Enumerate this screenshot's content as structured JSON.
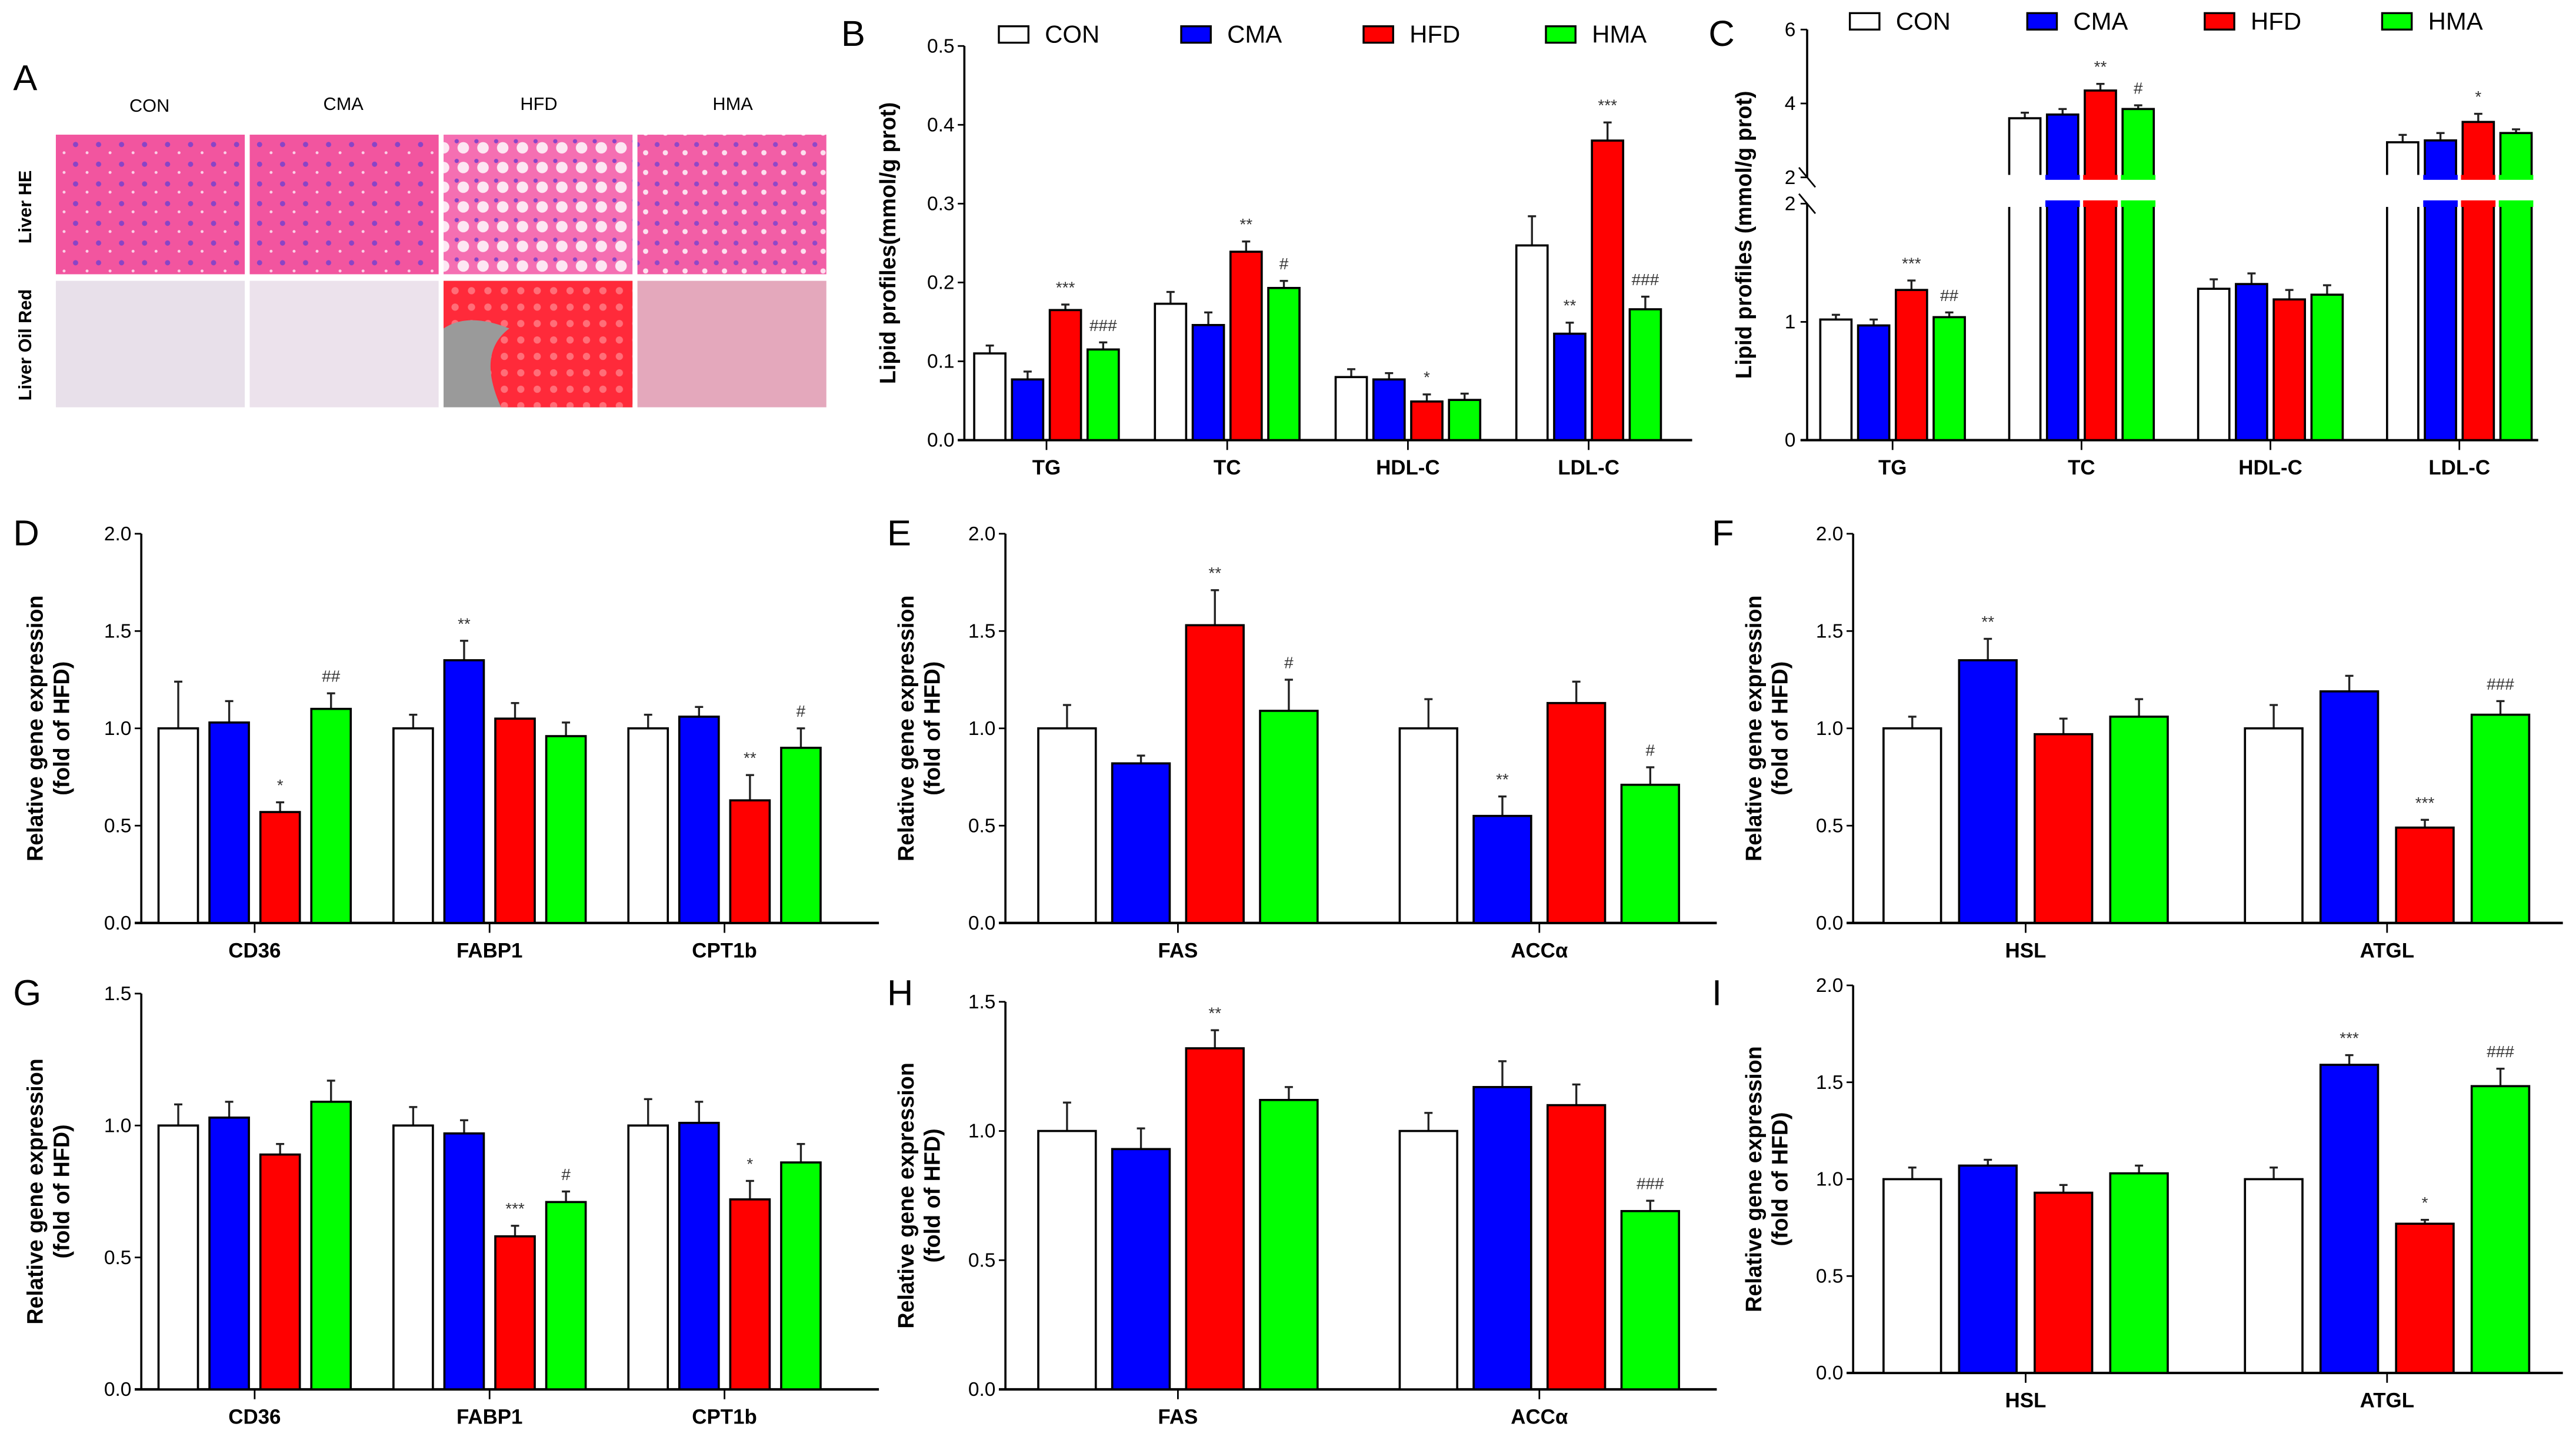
{
  "groups": [
    {
      "name": "CON",
      "color": "#ffffff"
    },
    {
      "name": "CMA",
      "color": "#0000ff"
    },
    {
      "name": "HFD",
      "color": "#ff0000"
    },
    {
      "name": "HMA",
      "color": "#00ff00"
    }
  ],
  "panel_a": {
    "letter": "A",
    "columns": [
      "CON",
      "CMA",
      "HFD",
      "HMA"
    ],
    "rows": [
      "Liver HE",
      "Liver Oil Red"
    ]
  },
  "chart_data": [
    {
      "id": "B",
      "type": "bar",
      "letter": "B",
      "ylabel": "Lipid profiles(mmol/g prot)",
      "ylabel2": "",
      "ylim": [
        0,
        0.5
      ],
      "yticks": [
        "0.0",
        "0.1",
        "0.2",
        "0.3",
        "0.4",
        "0.5"
      ],
      "legend": "top",
      "categories": [
        "TG",
        "TC",
        "HDL-C",
        "LDL-C"
      ],
      "series": [
        {
          "name": "CON",
          "values": [
            0.11,
            0.173,
            0.08,
            0.247
          ],
          "errors": [
            0.01,
            0.015,
            0.01,
            0.037
          ]
        },
        {
          "name": "CMA",
          "values": [
            0.077,
            0.146,
            0.077,
            0.135
          ],
          "errors": [
            0.01,
            0.016,
            0.008,
            0.014
          ]
        },
        {
          "name": "HFD",
          "values": [
            0.165,
            0.239,
            0.049,
            0.38
          ],
          "errors": [
            0.007,
            0.013,
            0.009,
            0.023
          ]
        },
        {
          "name": "HMA",
          "values": [
            0.115,
            0.193,
            0.051,
            0.166
          ],
          "errors": [
            0.009,
            0.009,
            0.008,
            0.016
          ]
        }
      ],
      "annotations": [
        [
          "",
          "",
          "***",
          "###"
        ],
        [
          "",
          "",
          "**",
          "#"
        ],
        [
          "",
          "",
          "*",
          ""
        ],
        [
          "",
          "**",
          "***",
          "###"
        ]
      ]
    },
    {
      "id": "C",
      "type": "bar",
      "letter": "C",
      "ylabel": "Lipid profiles (mmol/g prot)",
      "ylabel2": "",
      "ylim": [
        0,
        6
      ],
      "axis_break": [
        2,
        2
      ],
      "yticks": [
        "0",
        "1",
        "2",
        "2",
        "4",
        "6"
      ],
      "legend": "top",
      "categories": [
        "TG",
        "TC",
        "HDL-C",
        "LDL-C"
      ],
      "series": [
        {
          "name": "CON",
          "values": [
            1.02,
            3.6,
            1.28,
            2.95
          ],
          "errors": [
            0.04,
            0.15,
            0.08,
            0.2
          ]
        },
        {
          "name": "CMA",
          "values": [
            0.97,
            3.7,
            1.32,
            3.0
          ],
          "errors": [
            0.05,
            0.15,
            0.09,
            0.2
          ]
        },
        {
          "name": "HFD",
          "values": [
            1.27,
            4.35,
            1.19,
            3.5
          ],
          "errors": [
            0.08,
            0.18,
            0.08,
            0.22
          ]
        },
        {
          "name": "HMA",
          "values": [
            1.04,
            3.85,
            1.23,
            3.2
          ],
          "errors": [
            0.04,
            0.1,
            0.08,
            0.1
          ]
        }
      ],
      "annotations": [
        [
          "",
          "",
          "***",
          "##"
        ],
        [
          "",
          "",
          "**",
          "#"
        ],
        [
          "",
          "",
          "",
          ""
        ],
        [
          "",
          "",
          "*",
          ""
        ]
      ]
    },
    {
      "id": "D",
      "type": "bar",
      "letter": "D",
      "ylabel": "Relative gene expression",
      "ylabel2": "(fold of HFD)",
      "ylim": [
        0,
        2
      ],
      "yticks": [
        "0.0",
        "0.5",
        "1.0",
        "1.5",
        "2.0"
      ],
      "categories": [
        "CD36",
        "FABP1",
        "CPT1b"
      ],
      "series": [
        {
          "name": "CON",
          "values": [
            1.0,
            1.0,
            1.0
          ],
          "errors": [
            0.24,
            0.07,
            0.07
          ]
        },
        {
          "name": "CMA",
          "values": [
            1.03,
            1.35,
            1.06
          ],
          "errors": [
            0.11,
            0.1,
            0.05
          ]
        },
        {
          "name": "HFD",
          "values": [
            0.57,
            1.05,
            0.63
          ],
          "errors": [
            0.05,
            0.08,
            0.13
          ]
        },
        {
          "name": "HMA",
          "values": [
            1.1,
            0.96,
            0.9
          ],
          "errors": [
            0.08,
            0.07,
            0.1
          ]
        }
      ],
      "annotations": [
        [
          "",
          "",
          "*",
          "##"
        ],
        [
          "",
          "**",
          "",
          ""
        ],
        [
          "",
          "",
          "**",
          "#"
        ]
      ]
    },
    {
      "id": "E",
      "type": "bar",
      "letter": "E",
      "ylabel": "Relative gene expression",
      "ylabel2": "(fold of HFD)",
      "ylim": [
        0,
        2
      ],
      "yticks": [
        "0.0",
        "0.5",
        "1.0",
        "1.5",
        "2.0"
      ],
      "categories": [
        "FAS",
        "ACCα"
      ],
      "series": [
        {
          "name": "CON",
          "values": [
            1.0,
            1.0
          ],
          "errors": [
            0.12,
            0.15
          ]
        },
        {
          "name": "CMA",
          "values": [
            0.82,
            0.55
          ],
          "errors": [
            0.04,
            0.1
          ]
        },
        {
          "name": "HFD",
          "values": [
            1.53,
            1.13
          ],
          "errors": [
            0.18,
            0.11
          ]
        },
        {
          "name": "HMA",
          "values": [
            1.09,
            0.71
          ],
          "errors": [
            0.16,
            0.09
          ]
        }
      ],
      "annotations": [
        [
          "",
          "",
          "**",
          "#"
        ],
        [
          "",
          "**",
          "",
          "#"
        ]
      ]
    },
    {
      "id": "F",
      "type": "bar",
      "letter": "F",
      "ylabel": "Relative gene expression",
      "ylabel2": "(fold of HFD)",
      "ylim": [
        0,
        2
      ],
      "yticks": [
        "0.0",
        "0.5",
        "1.0",
        "1.5",
        "2.0"
      ],
      "categories": [
        "HSL",
        "ATGL"
      ],
      "series": [
        {
          "name": "CON",
          "values": [
            1.0,
            1.0
          ],
          "errors": [
            0.06,
            0.12
          ]
        },
        {
          "name": "CMA",
          "values": [
            1.35,
            1.19
          ],
          "errors": [
            0.11,
            0.08
          ]
        },
        {
          "name": "HFD",
          "values": [
            0.97,
            0.49
          ],
          "errors": [
            0.08,
            0.04
          ]
        },
        {
          "name": "HMA",
          "values": [
            1.06,
            1.07
          ],
          "errors": [
            0.09,
            0.07
          ]
        }
      ],
      "annotations": [
        [
          "",
          "**",
          "",
          ""
        ],
        [
          "",
          "",
          "***",
          "###"
        ]
      ]
    },
    {
      "id": "G",
      "type": "bar",
      "letter": "G",
      "ylabel": "Relative gene expression",
      "ylabel2": "(fold of HFD)",
      "ylim": [
        0,
        1.5
      ],
      "yticks": [
        "0.0",
        "0.5",
        "1.0",
        "1.5"
      ],
      "categories": [
        "CD36",
        "FABP1",
        "CPT1b"
      ],
      "series": [
        {
          "name": "CON",
          "values": [
            1.0,
            1.0,
            1.0
          ],
          "errors": [
            0.08,
            0.07,
            0.1
          ]
        },
        {
          "name": "CMA",
          "values": [
            1.03,
            0.97,
            1.01
          ],
          "errors": [
            0.06,
            0.05,
            0.08
          ]
        },
        {
          "name": "HFD",
          "values": [
            0.89,
            0.58,
            0.72
          ],
          "errors": [
            0.04,
            0.04,
            0.07
          ]
        },
        {
          "name": "HMA",
          "values": [
            1.09,
            0.71,
            0.86
          ],
          "errors": [
            0.08,
            0.04,
            0.07
          ]
        }
      ],
      "annotations": [
        [
          "",
          "",
          "",
          ""
        ],
        [
          "",
          "",
          "***",
          "#"
        ],
        [
          "",
          "",
          "*",
          ""
        ]
      ]
    },
    {
      "id": "H",
      "type": "bar",
      "letter": "H",
      "ylabel": "Relative gene expression",
      "ylabel2": "(fold of HFD)",
      "ylim": [
        0,
        1.5
      ],
      "yticks": [
        "0.0",
        "0.5",
        "1.0",
        "1.5"
      ],
      "categories": [
        "FAS",
        "ACCα"
      ],
      "series": [
        {
          "name": "CON",
          "values": [
            1.0,
            1.0
          ],
          "errors": [
            0.11,
            0.07
          ]
        },
        {
          "name": "CMA",
          "values": [
            0.93,
            1.17
          ],
          "errors": [
            0.08,
            0.1
          ]
        },
        {
          "name": "HFD",
          "values": [
            1.32,
            1.1
          ],
          "errors": [
            0.07,
            0.08
          ]
        },
        {
          "name": "HMA",
          "values": [
            1.12,
            0.69
          ],
          "errors": [
            0.05,
            0.04
          ]
        }
      ],
      "annotations": [
        [
          "",
          "",
          "**",
          ""
        ],
        [
          "",
          "",
          "",
          "###"
        ]
      ]
    },
    {
      "id": "I",
      "type": "bar",
      "letter": "I",
      "ylabel": "Relative gene expression",
      "ylabel2": "(fold of HFD)",
      "ylim": [
        0,
        2
      ],
      "yticks": [
        "0.0",
        "0.5",
        "1.0",
        "1.5",
        "2.0"
      ],
      "categories": [
        "HSL",
        "ATGL"
      ],
      "series": [
        {
          "name": "CON",
          "values": [
            1.0,
            1.0
          ],
          "errors": [
            0.06,
            0.06
          ]
        },
        {
          "name": "CMA",
          "values": [
            1.07,
            1.59
          ],
          "errors": [
            0.03,
            0.05
          ]
        },
        {
          "name": "HFD",
          "values": [
            0.93,
            0.77
          ],
          "errors": [
            0.04,
            0.02
          ]
        },
        {
          "name": "HMA",
          "values": [
            1.03,
            1.48
          ],
          "errors": [
            0.04,
            0.09
          ]
        }
      ],
      "annotations": [
        [
          "",
          "",
          "",
          ""
        ],
        [
          "",
          "***",
          "*",
          "###"
        ]
      ]
    }
  ]
}
